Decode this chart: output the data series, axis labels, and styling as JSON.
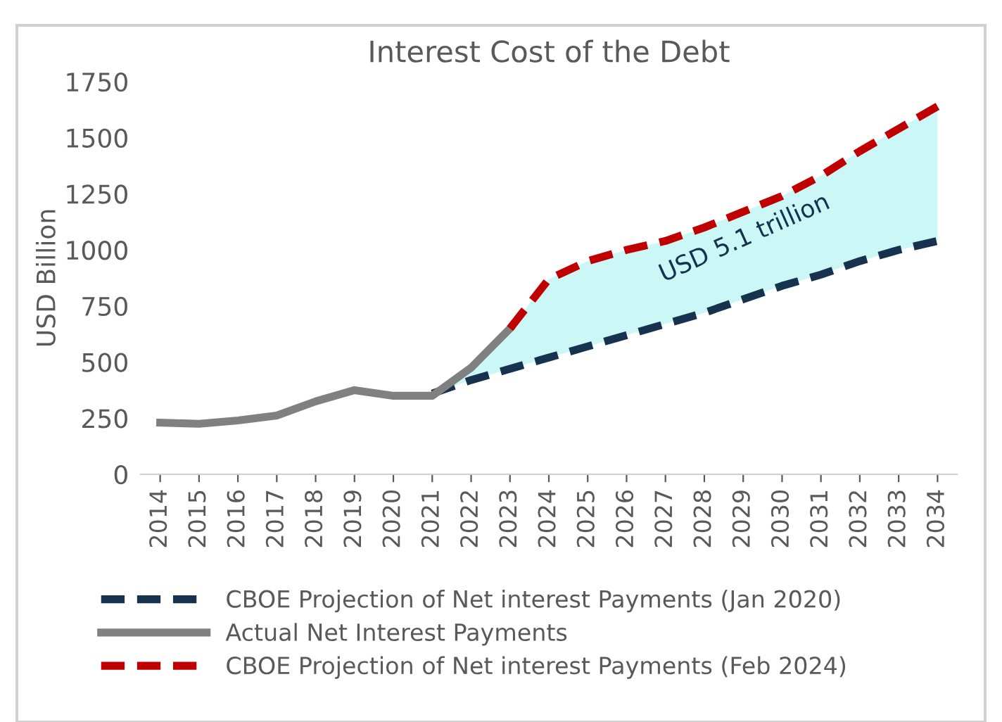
{
  "chart_data": {
    "type": "line",
    "title": "Interest Cost of the Debt",
    "ylabel": "USD Billion",
    "categories": [
      "2014",
      "2015",
      "2016",
      "2017",
      "2018",
      "2019",
      "2020",
      "2021",
      "2022",
      "2023",
      "2024",
      "2025",
      "2026",
      "2027",
      "2028",
      "2029",
      "2030",
      "2031",
      "2032",
      "2033",
      "2034"
    ],
    "ylim": [
      0,
      1750
    ],
    "yticks": [
      0,
      250,
      500,
      750,
      1000,
      1250,
      1500,
      1750
    ],
    "grid": false,
    "legend": "bottom",
    "series": [
      {
        "name": "CBOE Projection of Net interest Payments (Jan 2020)",
        "color": "#17324f",
        "line_style": "dashed",
        "values": [
          null,
          null,
          null,
          null,
          null,
          null,
          null,
          360,
          420,
          470,
          520,
          570,
          620,
          670,
          720,
          780,
          840,
          890,
          950,
          1000,
          1040
        ],
        "lower": [
          null,
          null,
          null,
          null,
          null,
          null,
          null,
          360,
          420,
          470,
          520,
          570,
          620,
          670,
          720,
          780,
          840,
          890,
          950,
          1000,
          1040
        ],
        "upper": [
          null,
          null,
          null,
          null,
          null,
          null,
          null,
          360,
          475,
          650,
          870,
          950,
          1000,
          1040,
          1100,
          1170,
          1240,
          1330,
          1440,
          1540,
          1640
        ]
      },
      {
        "name": "Actual Net Interest Payments",
        "color": "#808080",
        "line_style": "solid",
        "values": [
          230,
          225,
          240,
          262,
          325,
          375,
          350,
          350,
          475,
          650,
          null,
          null,
          null,
          null,
          null,
          null,
          null,
          null,
          null,
          null,
          null
        ]
      },
      {
        "name": "CBOE Projection of Net interest Payments (Feb 2024)",
        "color": "#c00000",
        "line_style": "dashed",
        "values": [
          null,
          null,
          null,
          null,
          null,
          null,
          null,
          null,
          null,
          650,
          870,
          950,
          1000,
          1040,
          1100,
          1170,
          1240,
          1330,
          1440,
          1540,
          1640
        ]
      }
    ],
    "annotations": [
      "USD 5.1 trillion"
    ]
  }
}
